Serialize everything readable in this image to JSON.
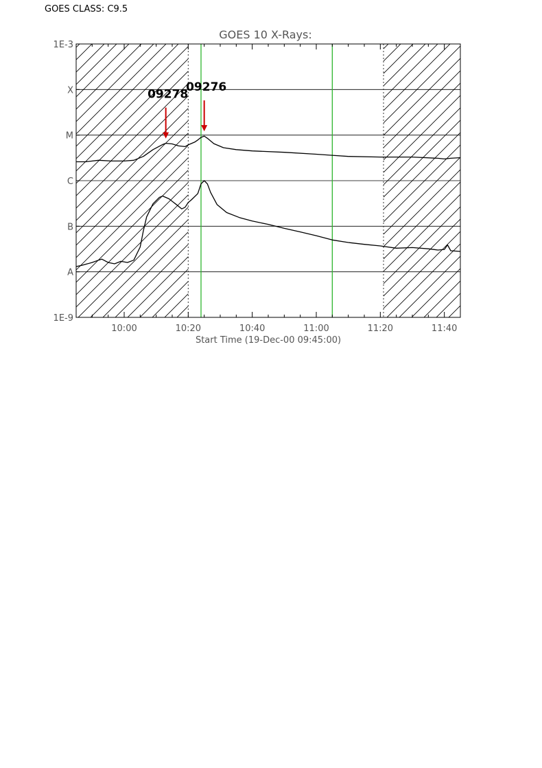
{
  "header": {
    "class_label": "GOES CLASS:",
    "class_value": "C9.5"
  },
  "chart_data": {
    "type": "line",
    "title": "GOES 10 X-Rays:",
    "xlabel": "Start Time (19-Dec-00 09:45:00)",
    "ylabel": "",
    "x_unit": "UT time (19-Dec-2000)",
    "xlim": [
      "09:45",
      "11:45"
    ],
    "x_ticks": [
      "10:00",
      "10:20",
      "10:40",
      "11:00",
      "11:20",
      "11:40"
    ],
    "y_scale": "log",
    "ylim": [
      1e-09,
      0.001
    ],
    "y_ticks": [
      {
        "label": "1E-9",
        "value": 1e-09
      },
      {
        "label": "A",
        "value": 1e-08
      },
      {
        "label": "B",
        "value": 1e-07
      },
      {
        "label": "C",
        "value": 1e-06
      },
      {
        "label": "M",
        "value": 1e-05
      },
      {
        "label": "X",
        "value": 0.0001
      },
      {
        "label": "1E-3",
        "value": 0.001
      }
    ],
    "grid": "horizontal",
    "hatched_ranges": [
      [
        "09:45",
        "10:20"
      ],
      [
        "11:21",
        "11:45"
      ]
    ],
    "dotted_lines": [
      "10:20",
      "11:21"
    ],
    "green_lines": [
      "10:24",
      "11:05"
    ],
    "colors": {
      "curve": "#000000",
      "green_line": "#2db52d",
      "arrow": "#cc0000",
      "grid": "#000000"
    },
    "series": [
      {
        "points": [
          [
            "09:45",
            2.6e-06
          ],
          [
            "09:48",
            2.6e-06
          ],
          [
            "09:52",
            2.8e-06
          ],
          [
            "09:56",
            2.7e-06
          ],
          [
            "10:00",
            2.7e-06
          ],
          [
            "10:03",
            2.8e-06
          ],
          [
            "10:06",
            3.4e-06
          ],
          [
            "10:09",
            4.8e-06
          ],
          [
            "10:12",
            6.2e-06
          ],
          [
            "10:13",
            6.6e-06
          ],
          [
            "10:15",
            6.4e-06
          ],
          [
            "10:17",
            5.8e-06
          ],
          [
            "10:19",
            5.6e-06
          ],
          [
            "10:20",
            6.1e-06
          ],
          [
            "10:22",
            7e-06
          ],
          [
            "10:23",
            7.8e-06
          ],
          [
            "10:24",
            8.9e-06
          ],
          [
            "10:25",
            9.5e-06
          ],
          [
            "10:26",
            8.5e-06
          ],
          [
            "10:28",
            6.5e-06
          ],
          [
            "10:31",
            5.3e-06
          ],
          [
            "10:35",
            4.8e-06
          ],
          [
            "10:40",
            4.5e-06
          ],
          [
            "10:50",
            4.2e-06
          ],
          [
            "11:00",
            3.8e-06
          ],
          [
            "11:05",
            3.6e-06
          ],
          [
            "11:10",
            3.4e-06
          ],
          [
            "11:20",
            3.3e-06
          ],
          [
            "11:30",
            3.3e-06
          ],
          [
            "11:38",
            3.1e-06
          ],
          [
            "11:40",
            3e-06
          ],
          [
            "11:42",
            3.1e-06
          ],
          [
            "11:45",
            3.2e-06
          ]
        ]
      },
      {
        "points": [
          [
            "09:45",
            1.3e-08
          ],
          [
            "09:47",
            1.4e-08
          ],
          [
            "09:50",
            1.6e-08
          ],
          [
            "09:52",
            1.8e-08
          ],
          [
            "09:53",
            1.9e-08
          ],
          [
            "09:55",
            1.6e-08
          ],
          [
            "09:57",
            1.5e-08
          ],
          [
            "09:59",
            1.7e-08
          ],
          [
            "10:01",
            1.6e-08
          ],
          [
            "10:03",
            1.8e-08
          ],
          [
            "10:05",
            3.5e-08
          ],
          [
            "10:06",
            8e-08
          ],
          [
            "10:07",
            1.6e-07
          ],
          [
            "10:09",
            3.1e-07
          ],
          [
            "10:11",
            4.3e-07
          ],
          [
            "10:12",
            4.6e-07
          ],
          [
            "10:14",
            4e-07
          ],
          [
            "10:16",
            3.1e-07
          ],
          [
            "10:18",
            2.4e-07
          ],
          [
            "10:19",
            2.6e-07
          ],
          [
            "10:20",
            3.3e-07
          ],
          [
            "10:21",
            3.8e-07
          ],
          [
            "10:23",
            5.2e-07
          ],
          [
            "10:24",
            8.5e-07
          ],
          [
            "10:25",
            1e-06
          ],
          [
            "10:26",
            8.5e-07
          ],
          [
            "10:27",
            5.5e-07
          ],
          [
            "10:29",
            3e-07
          ],
          [
            "10:32",
            2e-07
          ],
          [
            "10:36",
            1.55e-07
          ],
          [
            "10:40",
            1.3e-07
          ],
          [
            "10:45",
            1.1e-07
          ],
          [
            "10:50",
            9e-08
          ],
          [
            "10:55",
            7.5e-08
          ],
          [
            "11:00",
            6.2e-08
          ],
          [
            "11:05",
            5e-08
          ],
          [
            "11:10",
            4.4e-08
          ],
          [
            "11:15",
            4e-08
          ],
          [
            "11:20",
            3.7e-08
          ],
          [
            "11:25",
            3.3e-08
          ],
          [
            "11:30",
            3.4e-08
          ],
          [
            "11:35",
            3.2e-08
          ],
          [
            "11:38",
            3e-08
          ],
          [
            "11:40",
            3.1e-08
          ],
          [
            "11:41",
            3.9e-08
          ],
          [
            "11:42",
            2.9e-08
          ],
          [
            "11:45",
            2.8e-08
          ]
        ]
      }
    ],
    "annotations": [
      {
        "label": "09278",
        "x": "10:13",
        "y": 6.6e-06
      },
      {
        "label": "09276",
        "x": "10:25",
        "y": 9.5e-06
      }
    ]
  }
}
